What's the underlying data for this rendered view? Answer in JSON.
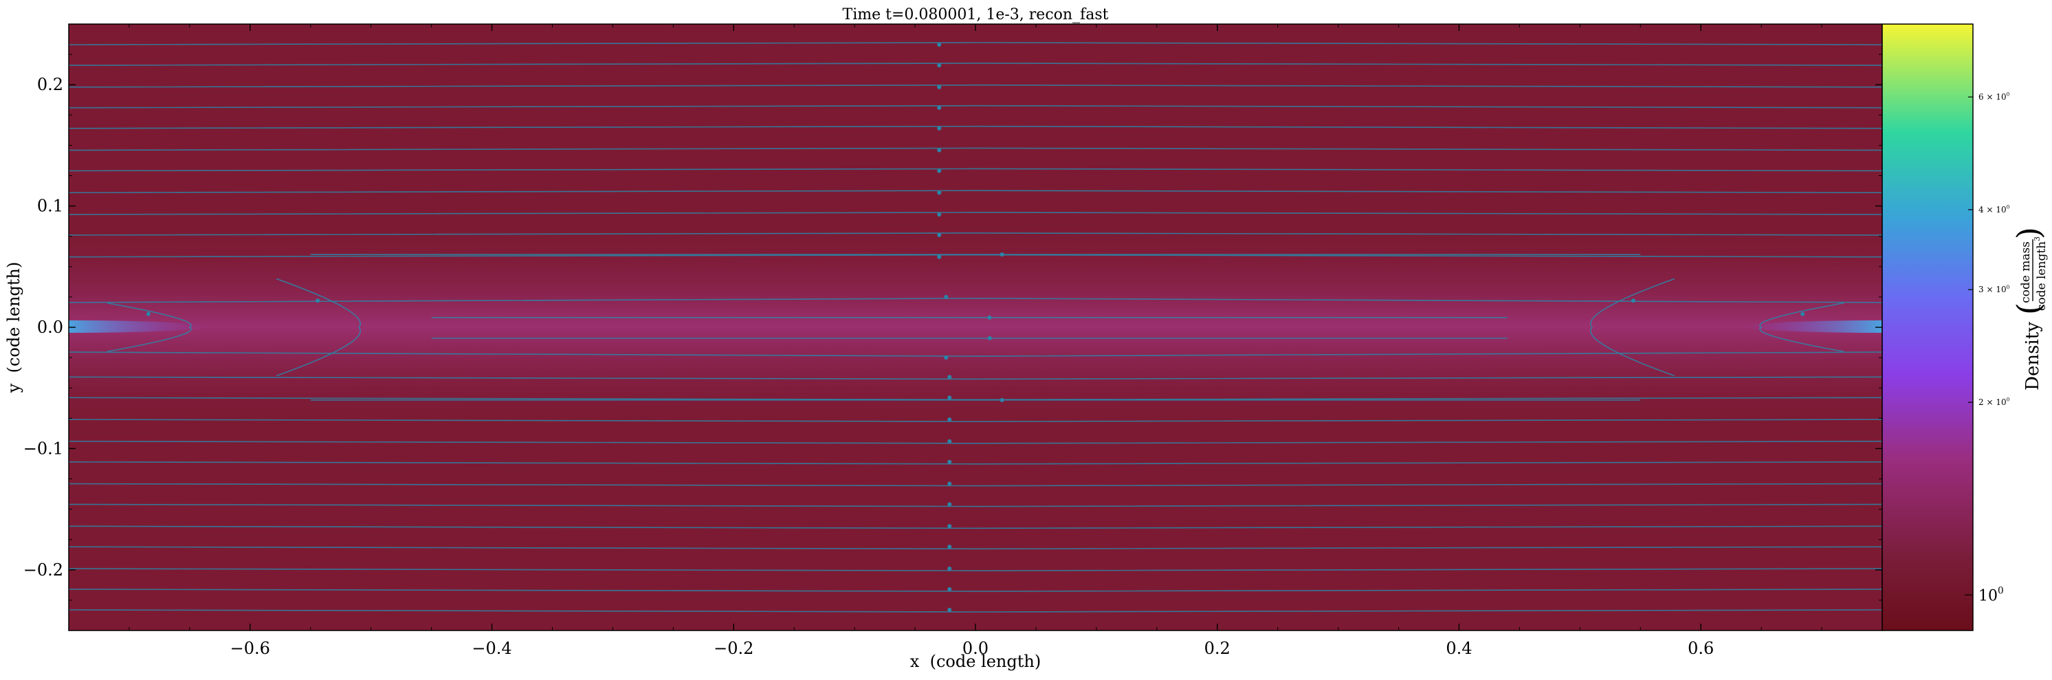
{
  "chart_data": {
    "type": "heatmap",
    "title": "Time t=0.080001, 1e-3, recon_fast",
    "xlabel": "x  (code length)",
    "ylabel": "y  (code length)",
    "xlim": [
      -0.75,
      0.75
    ],
    "ylim": [
      -0.25,
      0.25
    ],
    "x_ticks": [
      {
        "value": -0.6,
        "label": "−0.6"
      },
      {
        "value": -0.4,
        "label": "−0.4"
      },
      {
        "value": -0.2,
        "label": "−0.2"
      },
      {
        "value": 0.0,
        "label": "0.0"
      },
      {
        "value": 0.2,
        "label": "0.2"
      },
      {
        "value": 0.4,
        "label": "0.4"
      },
      {
        "value": 0.6,
        "label": "0.6"
      }
    ],
    "y_ticks": [
      {
        "value": 0.2,
        "label": "0.2"
      },
      {
        "value": 0.1,
        "label": "0.1"
      },
      {
        "value": 0.0,
        "label": "0.0"
      },
      {
        "value": -0.1,
        "label": "−0.1"
      },
      {
        "value": -0.2,
        "label": "−0.2"
      }
    ],
    "grid": false,
    "colormap": "viridis-magma (yellow → green → blue → purple → dark red)",
    "colorbar": {
      "label_main": "Density",
      "label_numerator": "code mass",
      "label_denominator": "code length",
      "label_denominator_exp": "3",
      "scale": "log",
      "range": [
        0.88,
        7.8
      ],
      "ticks": [
        {
          "value": 1,
          "base": "10",
          "exp": "0",
          "major": true
        },
        {
          "value": 2,
          "base": "2 × 10",
          "exp": "0",
          "major": false
        },
        {
          "value": 3,
          "base": "3 × 10",
          "exp": "0",
          "major": false
        },
        {
          "value": 4,
          "base": "4 × 10",
          "exp": "0",
          "major": false
        },
        {
          "value": 6,
          "base": "6 × 10",
          "exp": "0",
          "major": false
        }
      ],
      "stops": [
        {
          "offset": 0.0,
          "color": "#6a0e1a"
        },
        {
          "offset": 0.12,
          "color": "#7a1d3a"
        },
        {
          "offset": 0.28,
          "color": "#9a2d7e"
        },
        {
          "offset": 0.42,
          "color": "#8b3ee6"
        },
        {
          "offset": 0.55,
          "color": "#6a6cf2"
        },
        {
          "offset": 0.68,
          "color": "#3aa3d8"
        },
        {
          "offset": 0.82,
          "color": "#2fd6a0"
        },
        {
          "offset": 1.0,
          "color": "#f5f535"
        }
      ]
    },
    "field_colors": {
      "background": "#7d1a33",
      "current_sheet": "#9a2d72",
      "edge": "#6b1020",
      "streamline": "#2a86a8",
      "hotspot": "#3ee0b0"
    },
    "streamlines": {
      "horizontal_y": [
        0.233,
        0.216,
        0.198,
        0.181,
        0.164,
        0.146,
        0.129,
        0.111,
        0.093,
        0.076,
        0.058,
        -0.041,
        -0.058,
        -0.076,
        -0.094,
        -0.111,
        -0.129,
        -0.146,
        -0.164,
        -0.181,
        -0.199,
        -0.216,
        -0.233
      ],
      "short_lines": [
        {
          "x": [
            -0.55,
            0.55
          ],
          "y": 0.06
        },
        {
          "x": [
            -0.45,
            0.44
          ],
          "y": 0.008
        },
        {
          "x": [
            -0.45,
            0.44
          ],
          "y": -0.009
        },
        {
          "x": [
            -0.55,
            0.55
          ],
          "y": -0.06
        }
      ],
      "arrow_x": -0.03,
      "x_point_loops": [
        {
          "tip_x": -0.51,
          "span": 0.04
        },
        {
          "tip_x": 0.51,
          "span": 0.04
        },
        {
          "tip_x": -0.65,
          "span": 0.02
        },
        {
          "tip_x": 0.65,
          "span": 0.02
        }
      ]
    }
  }
}
